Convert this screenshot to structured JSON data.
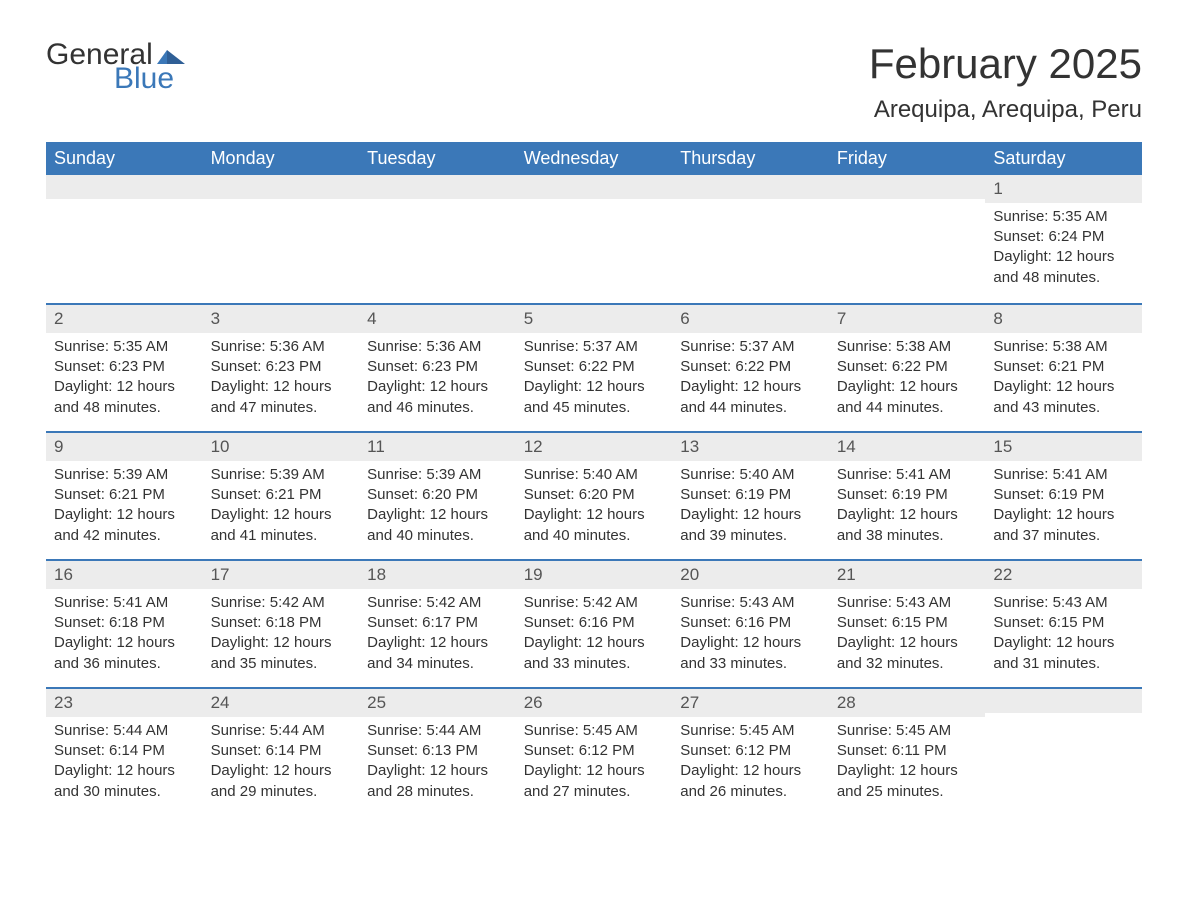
{
  "brand": {
    "word1": "General",
    "word2": "Blue",
    "text_color": "#333333",
    "accent_color": "#3b78b8"
  },
  "title": "February 2025",
  "location": "Arequipa, Arequipa, Peru",
  "colors": {
    "header_bg": "#3b78b8",
    "header_text": "#ffffff",
    "row_divider": "#3b78b8",
    "daynum_bg": "#ececec",
    "body_text": "#333333",
    "page_bg": "#ffffff"
  },
  "typography": {
    "title_fontsize": 42,
    "location_fontsize": 24,
    "weekday_fontsize": 18,
    "body_fontsize": 15
  },
  "weekdays": [
    "Sunday",
    "Monday",
    "Tuesday",
    "Wednesday",
    "Thursday",
    "Friday",
    "Saturday"
  ],
  "weeks": [
    [
      null,
      null,
      null,
      null,
      null,
      null,
      {
        "n": "1",
        "sunrise": "Sunrise: 5:35 AM",
        "sunset": "Sunset: 6:24 PM",
        "d1": "Daylight: 12 hours",
        "d2": "and 48 minutes."
      }
    ],
    [
      {
        "n": "2",
        "sunrise": "Sunrise: 5:35 AM",
        "sunset": "Sunset: 6:23 PM",
        "d1": "Daylight: 12 hours",
        "d2": "and 48 minutes."
      },
      {
        "n": "3",
        "sunrise": "Sunrise: 5:36 AM",
        "sunset": "Sunset: 6:23 PM",
        "d1": "Daylight: 12 hours",
        "d2": "and 47 minutes."
      },
      {
        "n": "4",
        "sunrise": "Sunrise: 5:36 AM",
        "sunset": "Sunset: 6:23 PM",
        "d1": "Daylight: 12 hours",
        "d2": "and 46 minutes."
      },
      {
        "n": "5",
        "sunrise": "Sunrise: 5:37 AM",
        "sunset": "Sunset: 6:22 PM",
        "d1": "Daylight: 12 hours",
        "d2": "and 45 minutes."
      },
      {
        "n": "6",
        "sunrise": "Sunrise: 5:37 AM",
        "sunset": "Sunset: 6:22 PM",
        "d1": "Daylight: 12 hours",
        "d2": "and 44 minutes."
      },
      {
        "n": "7",
        "sunrise": "Sunrise: 5:38 AM",
        "sunset": "Sunset: 6:22 PM",
        "d1": "Daylight: 12 hours",
        "d2": "and 44 minutes."
      },
      {
        "n": "8",
        "sunrise": "Sunrise: 5:38 AM",
        "sunset": "Sunset: 6:21 PM",
        "d1": "Daylight: 12 hours",
        "d2": "and 43 minutes."
      }
    ],
    [
      {
        "n": "9",
        "sunrise": "Sunrise: 5:39 AM",
        "sunset": "Sunset: 6:21 PM",
        "d1": "Daylight: 12 hours",
        "d2": "and 42 minutes."
      },
      {
        "n": "10",
        "sunrise": "Sunrise: 5:39 AM",
        "sunset": "Sunset: 6:21 PM",
        "d1": "Daylight: 12 hours",
        "d2": "and 41 minutes."
      },
      {
        "n": "11",
        "sunrise": "Sunrise: 5:39 AM",
        "sunset": "Sunset: 6:20 PM",
        "d1": "Daylight: 12 hours",
        "d2": "and 40 minutes."
      },
      {
        "n": "12",
        "sunrise": "Sunrise: 5:40 AM",
        "sunset": "Sunset: 6:20 PM",
        "d1": "Daylight: 12 hours",
        "d2": "and 40 minutes."
      },
      {
        "n": "13",
        "sunrise": "Sunrise: 5:40 AM",
        "sunset": "Sunset: 6:19 PM",
        "d1": "Daylight: 12 hours",
        "d2": "and 39 minutes."
      },
      {
        "n": "14",
        "sunrise": "Sunrise: 5:41 AM",
        "sunset": "Sunset: 6:19 PM",
        "d1": "Daylight: 12 hours",
        "d2": "and 38 minutes."
      },
      {
        "n": "15",
        "sunrise": "Sunrise: 5:41 AM",
        "sunset": "Sunset: 6:19 PM",
        "d1": "Daylight: 12 hours",
        "d2": "and 37 minutes."
      }
    ],
    [
      {
        "n": "16",
        "sunrise": "Sunrise: 5:41 AM",
        "sunset": "Sunset: 6:18 PM",
        "d1": "Daylight: 12 hours",
        "d2": "and 36 minutes."
      },
      {
        "n": "17",
        "sunrise": "Sunrise: 5:42 AM",
        "sunset": "Sunset: 6:18 PM",
        "d1": "Daylight: 12 hours",
        "d2": "and 35 minutes."
      },
      {
        "n": "18",
        "sunrise": "Sunrise: 5:42 AM",
        "sunset": "Sunset: 6:17 PM",
        "d1": "Daylight: 12 hours",
        "d2": "and 34 minutes."
      },
      {
        "n": "19",
        "sunrise": "Sunrise: 5:42 AM",
        "sunset": "Sunset: 6:16 PM",
        "d1": "Daylight: 12 hours",
        "d2": "and 33 minutes."
      },
      {
        "n": "20",
        "sunrise": "Sunrise: 5:43 AM",
        "sunset": "Sunset: 6:16 PM",
        "d1": "Daylight: 12 hours",
        "d2": "and 33 minutes."
      },
      {
        "n": "21",
        "sunrise": "Sunrise: 5:43 AM",
        "sunset": "Sunset: 6:15 PM",
        "d1": "Daylight: 12 hours",
        "d2": "and 32 minutes."
      },
      {
        "n": "22",
        "sunrise": "Sunrise: 5:43 AM",
        "sunset": "Sunset: 6:15 PM",
        "d1": "Daylight: 12 hours",
        "d2": "and 31 minutes."
      }
    ],
    [
      {
        "n": "23",
        "sunrise": "Sunrise: 5:44 AM",
        "sunset": "Sunset: 6:14 PM",
        "d1": "Daylight: 12 hours",
        "d2": "and 30 minutes."
      },
      {
        "n": "24",
        "sunrise": "Sunrise: 5:44 AM",
        "sunset": "Sunset: 6:14 PM",
        "d1": "Daylight: 12 hours",
        "d2": "and 29 minutes."
      },
      {
        "n": "25",
        "sunrise": "Sunrise: 5:44 AM",
        "sunset": "Sunset: 6:13 PM",
        "d1": "Daylight: 12 hours",
        "d2": "and 28 minutes."
      },
      {
        "n": "26",
        "sunrise": "Sunrise: 5:45 AM",
        "sunset": "Sunset: 6:12 PM",
        "d1": "Daylight: 12 hours",
        "d2": "and 27 minutes."
      },
      {
        "n": "27",
        "sunrise": "Sunrise: 5:45 AM",
        "sunset": "Sunset: 6:12 PM",
        "d1": "Daylight: 12 hours",
        "d2": "and 26 minutes."
      },
      {
        "n": "28",
        "sunrise": "Sunrise: 5:45 AM",
        "sunset": "Sunset: 6:11 PM",
        "d1": "Daylight: 12 hours",
        "d2": "and 25 minutes."
      },
      null
    ]
  ]
}
